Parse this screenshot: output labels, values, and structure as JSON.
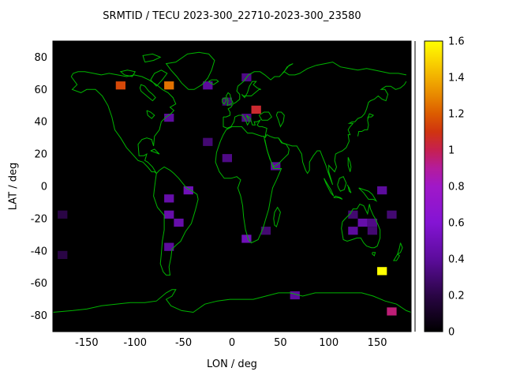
{
  "chart_data": {
    "type": "heatmap",
    "title": "SRMTID / TECU 2023-300_22710-2023-300_23580",
    "xlabel": "LON / deg",
    "ylabel": "LAT / deg",
    "xlim": [
      -185,
      185
    ],
    "ylim": [
      -90,
      90
    ],
    "x_ticks": [
      -150,
      -100,
      -50,
      0,
      50,
      100,
      150
    ],
    "y_ticks": [
      -80,
      -60,
      -40,
      -20,
      0,
      20,
      40,
      60,
      80
    ],
    "grid": false,
    "background": "#000000",
    "coastline_color": "#00b400",
    "border_color": "#000000",
    "cell_size": {
      "lon": 10,
      "lat": 5
    },
    "colorbar": {
      "min": 0,
      "max": 1.6,
      "ticks": [
        0,
        0.2,
        0.4,
        0.6,
        0.8,
        1,
        1.2,
        1.4,
        1.6
      ],
      "position": "right"
    },
    "palette": [
      {
        "value": 0.0,
        "color": "#000000"
      },
      {
        "value": 0.2,
        "color": "#2a0545"
      },
      {
        "value": 0.4,
        "color": "#5c0c9c"
      },
      {
        "value": 0.6,
        "color": "#8414d4"
      },
      {
        "value": 0.8,
        "color": "#a018c8"
      },
      {
        "value": 0.9,
        "color": "#b41c9c"
      },
      {
        "value": 1.0,
        "color": "#c62050"
      },
      {
        "value": 1.1,
        "color": "#d03410"
      },
      {
        "value": 1.2,
        "color": "#dc5c00"
      },
      {
        "value": 1.3,
        "color": "#e88800"
      },
      {
        "value": 1.4,
        "color": "#f2b000"
      },
      {
        "value": 1.5,
        "color": "#fad800"
      },
      {
        "value": 1.6,
        "color": "#ffff00"
      }
    ],
    "cells": [
      {
        "lon": -120,
        "lat": 60,
        "value": 1.15
      },
      {
        "lon": -70,
        "lat": 60,
        "value": 1.25
      },
      {
        "lon": -30,
        "lat": 60,
        "value": 0.4
      },
      {
        "lon": 10,
        "lat": 65,
        "value": 0.35
      },
      {
        "lon": -10,
        "lat": 50,
        "value": 0.3
      },
      {
        "lon": 20,
        "lat": 45,
        "value": 1.05
      },
      {
        "lon": -70,
        "lat": 40,
        "value": 0.4
      },
      {
        "lon": 10,
        "lat": 40,
        "value": 0.35
      },
      {
        "lon": -30,
        "lat": 25,
        "value": 0.3
      },
      {
        "lon": -10,
        "lat": 15,
        "value": 0.35
      },
      {
        "lon": 40,
        "lat": 10,
        "value": 0.4
      },
      {
        "lon": -50,
        "lat": -5,
        "value": 0.5
      },
      {
        "lon": -70,
        "lat": -10,
        "value": 0.45
      },
      {
        "lon": 150,
        "lat": -5,
        "value": 0.4
      },
      {
        "lon": -180,
        "lat": -20,
        "value": 0.2
      },
      {
        "lon": -70,
        "lat": -20,
        "value": 0.45
      },
      {
        "lon": 120,
        "lat": -20,
        "value": 0.3
      },
      {
        "lon": 160,
        "lat": -20,
        "value": 0.3
      },
      {
        "lon": 130,
        "lat": -25,
        "value": 0.45
      },
      {
        "lon": 140,
        "lat": -25,
        "value": 0.35
      },
      {
        "lon": -60,
        "lat": -25,
        "value": 0.45
      },
      {
        "lon": 120,
        "lat": -30,
        "value": 0.4
      },
      {
        "lon": 140,
        "lat": -30,
        "value": 0.3
      },
      {
        "lon": 30,
        "lat": -30,
        "value": 0.3
      },
      {
        "lon": 10,
        "lat": -35,
        "value": 0.5
      },
      {
        "lon": -70,
        "lat": -40,
        "value": 0.4
      },
      {
        "lon": -180,
        "lat": -45,
        "value": 0.2
      },
      {
        "lon": 150,
        "lat": -55,
        "value": 1.6
      },
      {
        "lon": 60,
        "lat": -70,
        "value": 0.4
      },
      {
        "lon": 160,
        "lat": -80,
        "value": 0.95
      }
    ]
  }
}
